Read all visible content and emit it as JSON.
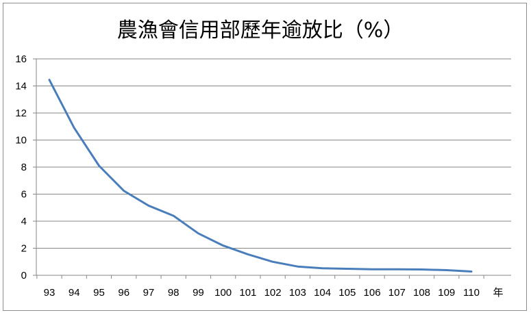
{
  "chart_data": {
    "type": "line",
    "title": "農漁會信用部歷年逾放比（%）",
    "xlabel": "年",
    "ylabel": "",
    "categories": [
      "93",
      "94",
      "95",
      "96",
      "97",
      "98",
      "99",
      "100",
      "101",
      "102",
      "103",
      "104",
      "105",
      "106",
      "107",
      "108",
      "109",
      "110"
    ],
    "series": [
      {
        "values": [
          14.45,
          10.9,
          8.1,
          6.25,
          5.15,
          4.4,
          3.1,
          2.2,
          1.55,
          1.0,
          0.65,
          0.52,
          0.48,
          0.44,
          0.44,
          0.43,
          0.38,
          0.28
        ]
      }
    ],
    "ylim": [
      0,
      16
    ],
    "yticks": [
      0,
      2,
      4,
      6,
      8,
      10,
      12,
      14,
      16
    ],
    "grid": "horizontal",
    "legend": "none",
    "line_color": "#4a7ebb",
    "grid_color": "#868686"
  }
}
